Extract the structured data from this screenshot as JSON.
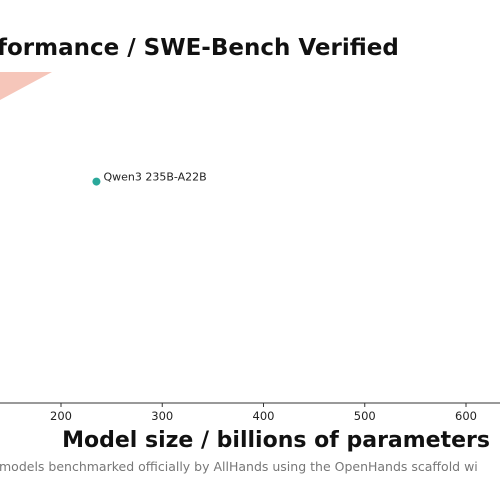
{
  "chart_data": {
    "type": "scatter",
    "title": "formance / SWE-Bench Verified",
    "xlabel": "Model size / billions of parameters",
    "footnote": "models benchmarked officially by AllHands using the OpenHands scaffold wi",
    "xlim": [
      100,
      630
    ],
    "xticks": [
      200,
      300,
      400,
      500,
      600
    ],
    "ylim": [
      0,
      100
    ],
    "grid": false,
    "points": [
      {
        "label": "Qwen3 235B-A22B",
        "x": 235,
        "y": 52,
        "color": "#2aa89a"
      }
    ],
    "decoration_color": "#f6c6ba"
  }
}
